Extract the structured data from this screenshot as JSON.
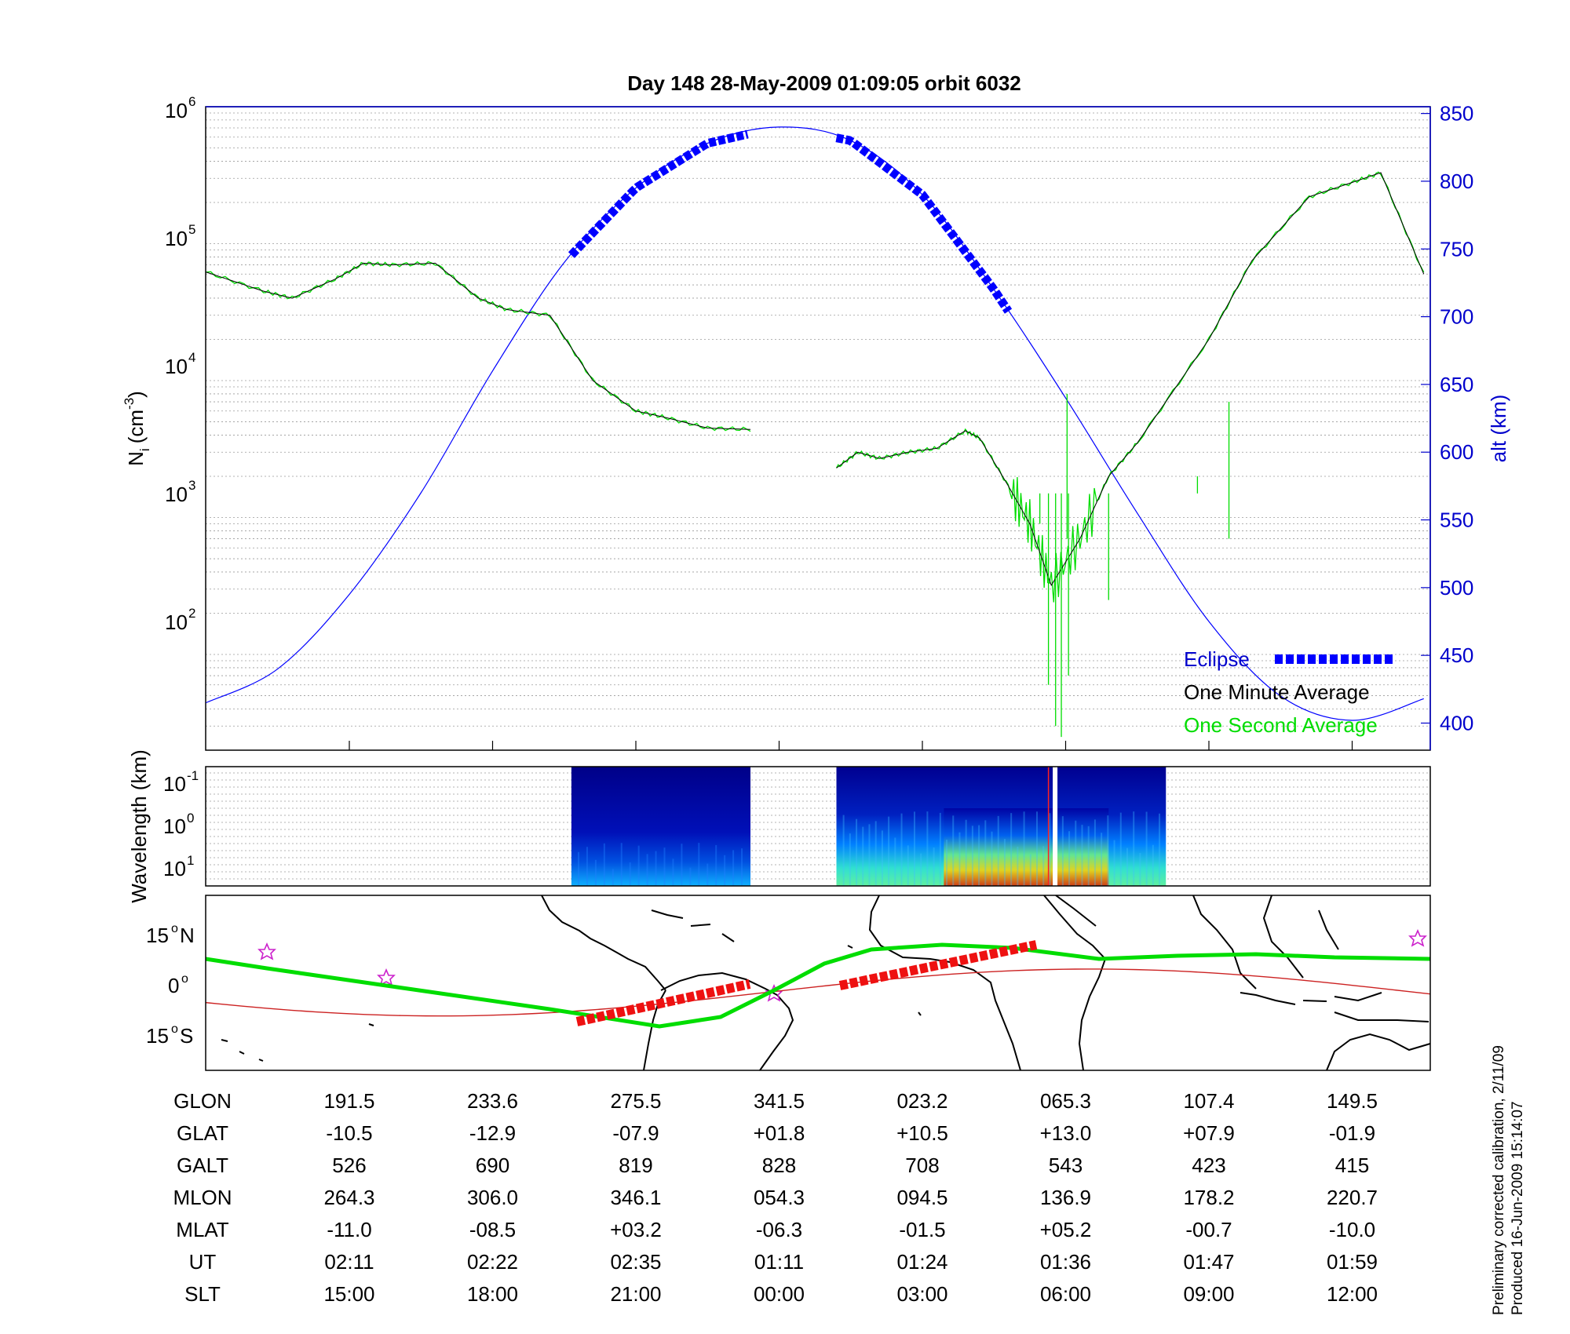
{
  "chart_data": [
    {
      "type": "line",
      "title": "Day 148  28-May-2009 01:09:05   orbit 6032",
      "ylabel": "N",
      "ylabel_sub": "i",
      "ylabel_unit": "(cm",
      "ylabel_unit_sup": "-3",
      "ylabel_unit_end": ")",
      "yscale": "log",
      "ylim": [
        20,
        1000000
      ],
      "y_ticks": [
        {
          "base": "10",
          "exp": "2",
          "value": 100
        },
        {
          "base": "10",
          "exp": "3",
          "value": 1000
        },
        {
          "base": "10",
          "exp": "4",
          "value": 10000
        },
        {
          "base": "10",
          "exp": "5",
          "value": 100000
        },
        {
          "base": "10",
          "exp": "6",
          "value": 1000000
        }
      ],
      "y2label": "alt (km)",
      "y2lim": [
        380,
        855
      ],
      "y2_ticks": [
        "400",
        "450",
        "500",
        "550",
        "600",
        "650",
        "700",
        "750",
        "800",
        "850"
      ],
      "grid": true,
      "legend_position": "bottom-right",
      "legend": [
        {
          "label": "Eclipse",
          "color": "#0000ff",
          "style": "thick-dashed"
        },
        {
          "label": "One Minute Average",
          "color": "#000000",
          "style": "line"
        },
        {
          "label": "One Second Average",
          "color": "#00dd00",
          "style": "line"
        }
      ],
      "x_index_note": "x values are orbit position in table-column units (0 = first column, 7.5 = last)",
      "series": [
        {
          "name": "alt (km)",
          "color": "#0000ff",
          "axis": "right",
          "x": [
            -1.0,
            -0.5,
            0.0,
            0.5,
            1.0,
            1.5,
            2.0,
            2.5,
            3.0,
            3.5,
            4.0,
            4.5,
            5.0,
            5.5,
            6.0,
            6.5,
            7.0,
            7.5
          ],
          "y": [
            415,
            440,
            495,
            570,
            660,
            740,
            795,
            828,
            840,
            830,
            790,
            720,
            640,
            555,
            475,
            420,
            402,
            418
          ]
        },
        {
          "name": "One Minute Average",
          "color": "#000000",
          "axis": "left",
          "segments": [
            {
              "x": [
                -1.0,
                -0.6,
                -0.4,
                -0.1,
                0.1,
                0.3,
                0.6,
                0.9,
                1.1,
                1.4,
                1.7,
                2.0,
                2.2,
                2.5,
                2.8
              ],
              "y": [
                62000,
                45000,
                40000,
                55000,
                72000,
                70000,
                72000,
                40000,
                33000,
                30000,
                10000,
                6000,
                5400,
                4500,
                4400
              ]
            },
            {
              "x": [
                3.4,
                3.55,
                3.7,
                3.9,
                4.1,
                4.3,
                4.4,
                4.6,
                4.75,
                4.9,
                5.1,
                5.3,
                5.5,
                6.0,
                6.3,
                6.7,
                7.0,
                7.2,
                7.5
              ],
              "y": [
                2300,
                3000,
                2700,
                3000,
                3200,
                4300,
                3800,
                1700,
                900,
                320,
                700,
                2000,
                3500,
                20000,
                75000,
                220000,
                280000,
                330000,
                60000
              ]
            }
          ]
        }
      ]
    },
    {
      "type": "heatmap",
      "ylabel": "Wavelength (km)",
      "y_ticks": [
        {
          "base": "10",
          "exp": "-1"
        },
        {
          "base": "10",
          "exp": "0"
        },
        {
          "base": "10",
          "exp": "1"
        }
      ],
      "colormap": "jet",
      "bands": [
        {
          "x_start": 1.55,
          "x_end": 2.8,
          "intensity": "low"
        },
        {
          "x_start": 3.4,
          "x_end": 5.7,
          "intensity": "high near 4.6"
        }
      ]
    },
    {
      "type": "map",
      "y_ticks": [
        {
          "deg": "15",
          "hem": "N"
        },
        {
          "deg": "0",
          "hem": ""
        },
        {
          "deg": "15",
          "hem": "S"
        }
      ],
      "lines": [
        {
          "name": "satellite ground track",
          "color": "#00dd00"
        },
        {
          "name": "magnetic equator",
          "color": "#cc2222"
        },
        {
          "name": "eclipse segments",
          "color": "#ee1111"
        }
      ]
    }
  ],
  "table": {
    "rows": [
      {
        "label": "GLON",
        "values": [
          "191.5",
          "233.6",
          "275.5",
          "341.5",
          "023.2",
          "065.3",
          "107.4",
          "149.5"
        ]
      },
      {
        "label": "GLAT",
        "values": [
          "-10.5",
          "-12.9",
          "-07.9",
          "+01.8",
          "+10.5",
          "+13.0",
          "+07.9",
          "-01.9"
        ]
      },
      {
        "label": "GALT",
        "values": [
          "526",
          "690",
          "819",
          "828",
          "708",
          "543",
          "423",
          "415"
        ]
      },
      {
        "label": "MLON",
        "values": [
          "264.3",
          "306.0",
          "346.1",
          "054.3",
          "094.5",
          "136.9",
          "178.2",
          "220.7"
        ]
      },
      {
        "label": "MLAT",
        "values": [
          "-11.0",
          "-08.5",
          "+03.2",
          "-06.3",
          "-01.5",
          "+05.2",
          "-00.7",
          "-10.0"
        ]
      },
      {
        "label": "UT",
        "values": [
          "02:11",
          "02:22",
          "02:35",
          "01:11",
          "01:24",
          "01:36",
          "01:47",
          "01:59"
        ]
      },
      {
        "label": "SLT",
        "values": [
          "15:00",
          "18:00",
          "21:00",
          "00:00",
          "03:00",
          "06:00",
          "09:00",
          "12:00"
        ]
      }
    ]
  },
  "notes": {
    "line1": "Preliminary corrected calibration, 2/11/09",
    "line2": "Produced 16-Jun-2009 15:14:07"
  },
  "colors": {
    "altitude": "#0000ff",
    "minute_avg": "#000000",
    "second_avg": "#00dd00",
    "track": "#00dd00",
    "mag_equator": "#cc2222",
    "eclipse_track": "#ee1111"
  }
}
